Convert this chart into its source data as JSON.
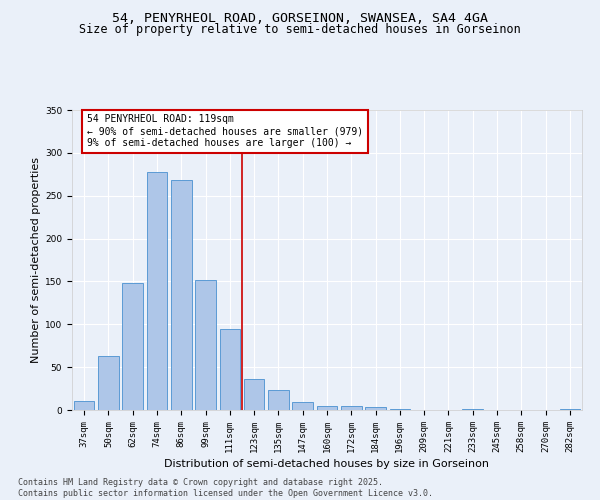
{
  "title_line1": "54, PENYRHEOL ROAD, GORSEINON, SWANSEA, SA4 4GA",
  "title_line2": "Size of property relative to semi-detached houses in Gorseinon",
  "xlabel": "Distribution of semi-detached houses by size in Gorseinon",
  "ylabel": "Number of semi-detached properties",
  "categories": [
    "37sqm",
    "50sqm",
    "62sqm",
    "74sqm",
    "86sqm",
    "99sqm",
    "111sqm",
    "123sqm",
    "135sqm",
    "147sqm",
    "160sqm",
    "172sqm",
    "184sqm",
    "196sqm",
    "209sqm",
    "221sqm",
    "233sqm",
    "245sqm",
    "258sqm",
    "270sqm",
    "282sqm"
  ],
  "values": [
    10,
    63,
    148,
    278,
    268,
    152,
    95,
    36,
    23,
    9,
    5,
    5,
    3,
    1,
    0,
    0,
    1,
    0,
    0,
    0,
    1
  ],
  "bar_color": "#aec6e8",
  "bar_edge_color": "#5b9bd5",
  "vline_x": 6.5,
  "vline_color": "#cc0000",
  "annotation_line1": "54 PENYRHEOL ROAD: 119sqm",
  "annotation_line2": "← 90% of semi-detached houses are smaller (979)",
  "annotation_line3": "9% of semi-detached houses are larger (100) →",
  "annotation_box_color": "#ffffff",
  "annotation_box_edge_color": "#cc0000",
  "ylim": [
    0,
    350
  ],
  "yticks": [
    0,
    50,
    100,
    150,
    200,
    250,
    300,
    350
  ],
  "footer_line1": "Contains HM Land Registry data © Crown copyright and database right 2025.",
  "footer_line2": "Contains public sector information licensed under the Open Government Licence v3.0.",
  "bg_color": "#eaf0f9",
  "plot_bg_color": "#eaf0f9",
  "title_fontsize": 9.5,
  "subtitle_fontsize": 8.5,
  "axis_label_fontsize": 8,
  "tick_fontsize": 6.5,
  "footer_fontsize": 6,
  "annotation_fontsize": 7
}
